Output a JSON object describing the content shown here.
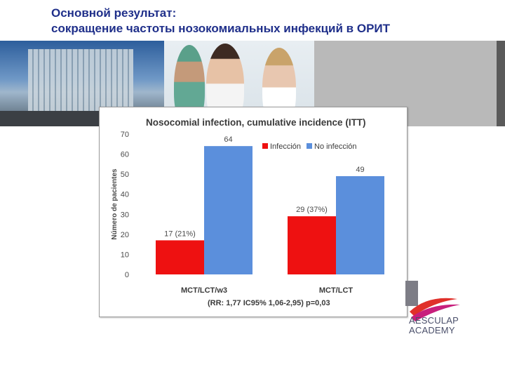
{
  "slide": {
    "title_line1": "Основной результат:",
    "title_line2": "сокращение частоты нозокомиальных инфекций в ОРИТ"
  },
  "logo": {
    "line1": "AESCULAP",
    "line2": "ACADEMY"
  },
  "chart_data": {
    "type": "bar",
    "title": "Nosocomial infection, cumulative incidence (ITT)",
    "ylabel": "Número de pacientes",
    "ylim": [
      0,
      70
    ],
    "yticks": [
      0,
      10,
      20,
      30,
      40,
      50,
      60,
      70
    ],
    "categories": [
      "MCT/LCT/w3",
      "MCT/LCT"
    ],
    "xlabel_note": "(RR: 1,77 IC95% 1,06-2,95) p=0,03",
    "legend_position": "top-right",
    "grid": false,
    "series": [
      {
        "name": "Infección",
        "color": "#ee1111",
        "values": [
          17,
          29
        ],
        "labels": [
          "17 (21%)",
          "29 (37%)"
        ]
      },
      {
        "name": "No infección",
        "color": "#5b8fdc",
        "values": [
          64,
          49
        ],
        "labels": [
          "64",
          "49"
        ]
      }
    ]
  }
}
